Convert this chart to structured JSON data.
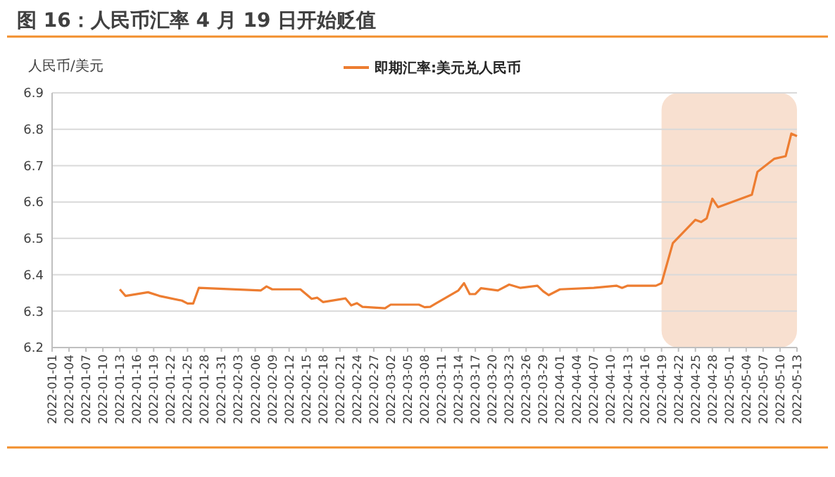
{
  "chart_data": {
    "type": "line",
    "title": "图 16：人民币汇率 4 月 19 日开始贬值",
    "ylabel": "人民币/美元",
    "x": [
      "2022-01-13",
      "2022-01-14",
      "2022-01-18",
      "2022-01-20",
      "2022-01-24",
      "2022-01-25",
      "2022-01-26",
      "2022-01-27",
      "2022-02-07",
      "2022-02-08",
      "2022-02-09",
      "2022-02-14",
      "2022-02-16",
      "2022-02-17",
      "2022-02-18",
      "2022-02-22",
      "2022-02-23",
      "2022-02-24",
      "2022-02-25",
      "2022-03-01",
      "2022-03-02",
      "2022-03-07",
      "2022-03-08",
      "2022-03-09",
      "2022-03-10",
      "2022-03-14",
      "2022-03-15",
      "2022-03-16",
      "2022-03-17",
      "2022-03-18",
      "2022-03-21",
      "2022-03-23",
      "2022-03-25",
      "2022-03-28",
      "2022-03-29",
      "2022-03-30",
      "2022-04-01",
      "2022-04-07",
      "2022-04-11",
      "2022-04-12",
      "2022-04-13",
      "2022-04-18",
      "2022-04-19",
      "2022-04-21",
      "2022-04-25",
      "2022-04-26",
      "2022-04-27",
      "2022-04-28",
      "2022-04-29",
      "2022-05-05",
      "2022-05-06",
      "2022-05-09",
      "2022-05-11",
      "2022-05-12",
      "2022-05-13"
    ],
    "series": [
      {
        "name": "即期汇率:美元兑人民币",
        "color": "#ed7d31",
        "values": [
          6.36,
          6.342,
          6.352,
          6.342,
          6.329,
          6.321,
          6.321,
          6.364,
          6.357,
          6.368,
          6.36,
          6.36,
          6.334,
          6.337,
          6.325,
          6.335,
          6.316,
          6.322,
          6.312,
          6.308,
          6.318,
          6.318,
          6.311,
          6.312,
          6.321,
          6.357,
          6.377,
          6.347,
          6.347,
          6.363,
          6.357,
          6.373,
          6.364,
          6.37,
          6.355,
          6.344,
          6.36,
          6.364,
          6.37,
          6.364,
          6.37,
          6.37,
          6.377,
          6.487,
          6.551,
          6.545,
          6.555,
          6.609,
          6.586,
          6.62,
          6.683,
          6.719,
          6.726,
          6.788,
          6.781
        ]
      }
    ],
    "xlim": [
      "2022-01-01",
      "2022-05-13"
    ],
    "xticks": [
      "2022-01-01",
      "2022-01-04",
      "2022-01-07",
      "2022-01-10",
      "2022-01-13",
      "2022-01-16",
      "2022-01-19",
      "2022-01-22",
      "2022-01-25",
      "2022-01-28",
      "2022-01-31",
      "2022-02-03",
      "2022-02-06",
      "2022-02-09",
      "2022-02-12",
      "2022-02-15",
      "2022-02-18",
      "2022-02-21",
      "2022-02-24",
      "2022-02-27",
      "2022-03-02",
      "2022-03-05",
      "2022-03-08",
      "2022-03-11",
      "2022-03-14",
      "2022-03-17",
      "2022-03-20",
      "2022-03-23",
      "2022-03-26",
      "2022-03-29",
      "2022-04-01",
      "2022-04-04",
      "2022-04-07",
      "2022-04-10",
      "2022-04-13",
      "2022-04-16",
      "2022-04-19",
      "2022-04-22",
      "2022-04-25",
      "2022-04-28",
      "2022-05-01",
      "2022-05-04",
      "2022-05-07",
      "2022-05-10",
      "2022-05-13"
    ],
    "ylim": [
      6.2,
      6.9
    ],
    "yticks": [
      6.2,
      6.3,
      6.4,
      6.5,
      6.6,
      6.7,
      6.8,
      6.9
    ],
    "bands": [
      {
        "axis": "x",
        "from": "2022-04-19",
        "to": "2022-05-13",
        "color": "#f8e0d0"
      }
    ],
    "grid": "y",
    "legend": "top",
    "marker": "none",
    "line_style": "solid"
  }
}
